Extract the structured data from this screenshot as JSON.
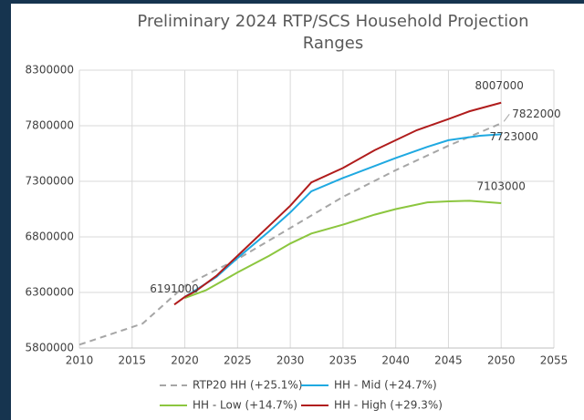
{
  "chart_data": {
    "type": "line",
    "title": "Preliminary 2024 RTP/SCS Household Projection Ranges",
    "xlim": [
      2010,
      2055
    ],
    "xticks": [
      2010,
      2015,
      2020,
      2025,
      2030,
      2035,
      2040,
      2045,
      2050,
      2055
    ],
    "ylim": [
      5800000,
      8300000
    ],
    "yticks": [
      5800000,
      6300000,
      6800000,
      7300000,
      7800000,
      8300000
    ],
    "grid": true,
    "legend": "bottom",
    "series": [
      {
        "name": "RTP20 HH (+25.1%)",
        "color": "#a6a6a6",
        "dashed": true,
        "x": [
          2010,
          2016,
          2020,
          2025,
          2030,
          2035,
          2040,
          2045,
          2050
        ],
        "values": [
          5830000,
          6020000,
          6360000,
          6600000,
          6880000,
          7160000,
          7400000,
          7620000,
          7822000
        ]
      },
      {
        "name": "HH - Mid (+24.7%)",
        "color": "#1fa9e1",
        "x": [
          2020,
          2023,
          2025,
          2028,
          2030,
          2032,
          2035,
          2040,
          2043,
          2045,
          2048,
          2050
        ],
        "values": [
          6260000,
          6440000,
          6610000,
          6850000,
          7020000,
          7210000,
          7330000,
          7510000,
          7610000,
          7670000,
          7710000,
          7723000
        ]
      },
      {
        "name": "HH - Low (+14.7%)",
        "color": "#8cc63f",
        "x": [
          2020,
          2022,
          2025,
          2028,
          2030,
          2032,
          2035,
          2038,
          2040,
          2043,
          2045,
          2047,
          2050
        ],
        "values": [
          6250000,
          6320000,
          6480000,
          6630000,
          6740000,
          6830000,
          6910000,
          7000000,
          7050000,
          7110000,
          7120000,
          7125000,
          7103000
        ]
      },
      {
        "name": "HH - High (+29.3%)",
        "color": "#b01c1c",
        "x": [
          2019,
          2020,
          2021,
          2023,
          2025,
          2028,
          2030,
          2032,
          2035,
          2038,
          2040,
          2042,
          2045,
          2047,
          2050
        ],
        "values": [
          6191000,
          6260000,
          6310000,
          6450000,
          6630000,
          6900000,
          7080000,
          7290000,
          7420000,
          7580000,
          7670000,
          7760000,
          7860000,
          7930000,
          8007000
        ]
      }
    ]
  }
}
